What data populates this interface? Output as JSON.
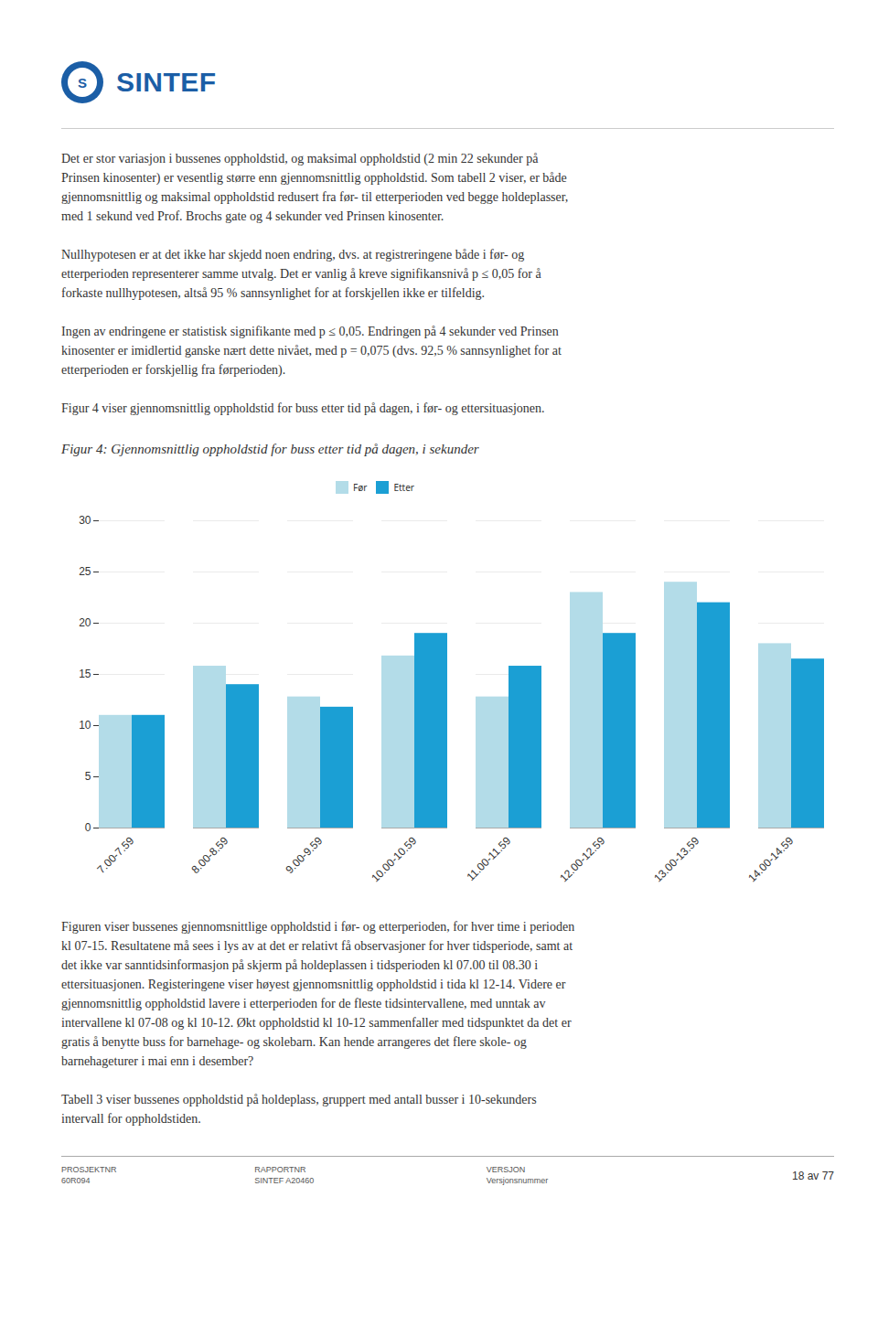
{
  "logo_mark": "S",
  "logo_text": "SINTEF",
  "body_text": [
    [
      "Det er stor variasjon i bussenes oppholdstid, og maksimal oppholdstid (2 min 22 sekunder på",
      "Prinsen kinosenter) er vesentlig større enn gjennomsnittlig oppholdstid. Som tabell 2 viser, er både",
      "gjennomsnittlig og maksimal oppholdstid redusert fra før- til etterperioden ved begge holdeplasser,",
      "med 1 sekund ved Prof. Brochs gate og 4 sekunder ved Prinsen kinosenter."
    ],
    [
      "Nullhypotesen er at det ikke har skjedd noen endring, dvs. at registreringene både i før- og",
      "etterperioden representerer samme utvalg. Det er vanlig å kreve signifikansnivå p ≤ 0,05 for å",
      "forkaste nullhypotesen, altså 95 % sannsynlighet for at forskjellen ikke er tilfeldig."
    ],
    [
      "Ingen av endringene er statistisk signifikante med p ≤ 0,05. Endringen på 4 sekunder ved Prinsen",
      "kinosenter er imidlertid ganske nært dette nivået, med p = 0,075 (dvs. 92,5 % sannsynlighet for at",
      "etterperioden er forskjellig fra førperioden)."
    ],
    [
      "Figur 4 viser gjennomsnittlig oppholdstid for buss etter tid på dagen, i før- og ettersituasjonen."
    ]
  ],
  "chart_data": {
    "type": "bar",
    "title": "Figur 4: Gjennomsnittlig oppholdstid for buss etter tid på dagen, i sekunder",
    "categories": [
      "7.00-7.59",
      "8.00-8.59",
      "9.00-9.59",
      "10.00-10.59",
      "11.00-11.59",
      "12.00-12.59",
      "13.00-13.59",
      "14.00-14.59"
    ],
    "series": [
      {
        "name": "Før",
        "color": "#b3dce8",
        "values": [
          11.0,
          15.8,
          12.8,
          16.8,
          12.8,
          23.0,
          24.0,
          18.0
        ]
      },
      {
        "name": "Etter",
        "color": "#1b9fd4",
        "values": [
          11.0,
          14.0,
          11.8,
          19.0,
          15.8,
          19.0,
          22.0,
          16.5
        ]
      }
    ],
    "ylim": [
      0,
      30
    ],
    "yticks": [
      0,
      5,
      10,
      15,
      20,
      25,
      30
    ],
    "grid": true,
    "legend": "top"
  },
  "bottom_text": [
    [
      "Figuren viser bussenes gjennomsnittlige oppholdstid i før- og etterperioden, for hver time i perioden",
      "kl 07-15. Resultatene må sees i lys av at det er relativt få observasjoner for hver tidsperiode, samt at",
      "det ikke var sanntidsinformasjon på skjerm på holdeplassen i tidsperioden kl 07.00 til 08.30 i",
      "ettersituasjonen. Registeringene viser høyest gjennomsnittlig oppholdstid i tida kl 12-14. Videre er",
      "gjennomsnittlig oppholdstid lavere i etterperioden for de fleste tidsintervallene, med unntak av",
      "intervallene kl 07-08 og kl 10-12. Økt oppholdstid kl 10-12 sammenfaller med tidspunktet da det er",
      "gratis å benytte buss for barnehage- og skolebarn. Kan hende arrangeres det flere skole- og",
      "barnehageturer i mai enn i desember?"
    ],
    [
      "Tabell 3 viser bussenes oppholdstid på holdeplass, gruppert med antall busser i 10-sekunders",
      "intervall for oppholdstiden."
    ]
  ],
  "footer": {
    "project": "PROSJEKTNR\n60R094",
    "rapport": "RAPPORTNR\nSINTEF A20460",
    "versjon": "VERSJON\nVersjonsnummer",
    "page": "18 av 77"
  }
}
